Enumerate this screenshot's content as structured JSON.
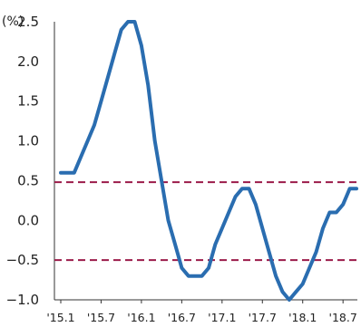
{
  "chart_data": {
    "type": "line",
    "unit_label": "(%)",
    "x_labels": [
      "'15.1",
      "'15.7",
      "'16.1",
      "'16.7",
      "'17.1",
      "'17.7",
      "'18.1",
      "'18.7"
    ],
    "ylim": [
      -1.0,
      2.5
    ],
    "y_ticks": [
      "−1.0",
      "−0.5",
      "0.0",
      "0.5",
      "1.0",
      "1.5",
      "2.0",
      "2.5"
    ],
    "y_tick_values": [
      -1.0,
      -0.5,
      0.0,
      0.5,
      1.0,
      1.5,
      2.0,
      2.5
    ],
    "series": [
      {
        "color": "#2a6db0",
        "x": [
          "2015-01",
          "2015-02",
          "2015-03",
          "2015-04",
          "2015-05",
          "2015-06",
          "2015-07",
          "2015-08",
          "2015-09",
          "2015-10",
          "2015-11",
          "2015-12",
          "2016-01",
          "2016-02",
          "2016-03",
          "2016-04",
          "2016-05",
          "2016-06",
          "2016-07",
          "2016-08",
          "2016-09",
          "2016-10",
          "2016-11",
          "2016-12",
          "2017-01",
          "2017-02",
          "2017-03",
          "2017-04",
          "2017-05",
          "2017-06",
          "2017-07",
          "2017-08",
          "2017-09",
          "2017-10",
          "2017-11",
          "2017-12",
          "2018-01",
          "2018-02",
          "2018-03",
          "2018-04",
          "2018-05",
          "2018-06",
          "2018-07",
          "2018-08",
          "2018-09"
        ],
        "values": [
          0.6,
          0.6,
          0.6,
          0.8,
          1.0,
          1.2,
          1.5,
          1.8,
          2.1,
          2.4,
          2.5,
          2.5,
          2.2,
          1.7,
          1.0,
          0.5,
          0.0,
          -0.3,
          -0.6,
          -0.7,
          -0.7,
          -0.7,
          -0.6,
          -0.3,
          -0.1,
          0.1,
          0.3,
          0.4,
          0.4,
          0.2,
          -0.1,
          -0.4,
          -0.7,
          -0.9,
          -1.0,
          -0.9,
          -0.8,
          -0.6,
          -0.4,
          -0.1,
          0.1,
          0.1,
          0.2,
          0.4,
          0.4
        ]
      }
    ],
    "reference_lines": [
      {
        "value": 0.48,
        "style": "dashed",
        "color": "#9b1b4a"
      },
      {
        "value": -0.5,
        "style": "dashed",
        "color": "#9b1b4a"
      }
    ],
    "grid": false,
    "legend": "none"
  }
}
